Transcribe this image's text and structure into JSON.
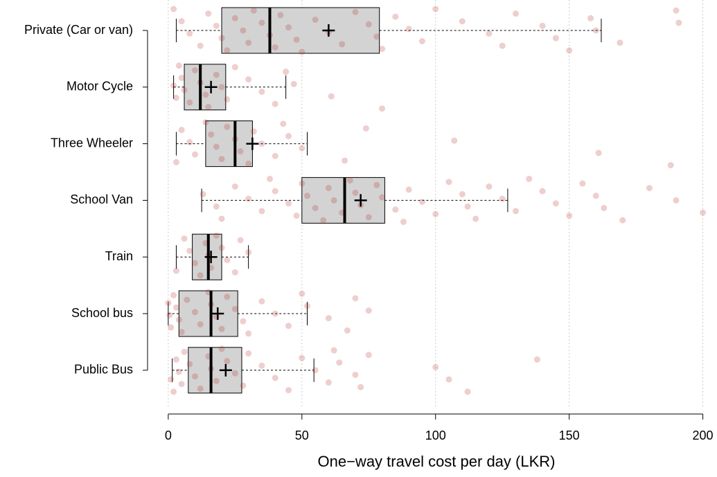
{
  "chart_data": {
    "type": "boxplot",
    "orientation": "horizontal",
    "xlabel": "One−way travel cost per day (LKR)",
    "categories": [
      "Private (Car or van)",
      "Motor Cycle",
      "Three Wheeler",
      "School Van",
      "Train",
      "School bus",
      "Public Bus"
    ],
    "boxes": [
      {
        "whislo": 3,
        "q1": 20,
        "med": 38,
        "q3": 79,
        "whishi": 162,
        "mean": 60
      },
      {
        "whislo": 2,
        "q1": 6,
        "med": 12,
        "q3": 21.5,
        "whishi": 44,
        "mean": 16
      },
      {
        "whislo": 3,
        "q1": 14,
        "med": 25,
        "q3": 31.5,
        "whishi": 52,
        "mean": 31.5
      },
      {
        "whislo": 12.5,
        "q1": 50,
        "med": 66,
        "q3": 81,
        "whishi": 127,
        "mean": 72
      },
      {
        "whislo": 3,
        "q1": 9,
        "med": 15,
        "q3": 20,
        "whishi": 30,
        "mean": 16
      },
      {
        "whislo": 0,
        "q1": 4,
        "med": 16,
        "q3": 26,
        "whishi": 52,
        "mean": 18.5
      },
      {
        "whislo": 1.5,
        "q1": 7.5,
        "med": 16,
        "q3": 27.5,
        "whishi": 54.5,
        "mean": 21.5
      }
    ],
    "points": [
      [
        2,
        5,
        8,
        12,
        15,
        18,
        20,
        22,
        25,
        28,
        30,
        32,
        35,
        38,
        40,
        42,
        45,
        48,
        50,
        55,
        60,
        65,
        70,
        75,
        78,
        80,
        85,
        90,
        95,
        100,
        110,
        120,
        125,
        130,
        140,
        145,
        150,
        158,
        160,
        169,
        190,
        191
      ],
      [
        2,
        3,
        4,
        5,
        6,
        8,
        10,
        12,
        14,
        15,
        18,
        20,
        22,
        25,
        30,
        35,
        40,
        44,
        47,
        61,
        80
      ],
      [
        3,
        5,
        8,
        10,
        14,
        16,
        18,
        20,
        22,
        25,
        27,
        30,
        32,
        35,
        40,
        43,
        45,
        50,
        66,
        74,
        107,
        161,
        188
      ],
      [
        13,
        18,
        20,
        25,
        30,
        35,
        38,
        40,
        45,
        48,
        50,
        52,
        55,
        58,
        60,
        62,
        65,
        68,
        70,
        72,
        75,
        78,
        80,
        85,
        88,
        90,
        95,
        100,
        105,
        110,
        112,
        115,
        120,
        125,
        130,
        135,
        140,
        145,
        150,
        155,
        160,
        163,
        170,
        180,
        190,
        200
      ],
      [
        3,
        6,
        8,
        10,
        12,
        14,
        15,
        16,
        18,
        20,
        22,
        25,
        27,
        30
      ],
      [
        0,
        0.5,
        1,
        2,
        3,
        4,
        5,
        7,
        10,
        12,
        15,
        16,
        18,
        20,
        22,
        25,
        28,
        30,
        35,
        40,
        45,
        50,
        52,
        60,
        67,
        70,
        75
      ],
      [
        1,
        2,
        3,
        4,
        5,
        6,
        8,
        10,
        12,
        15,
        16,
        18,
        20,
        22,
        25,
        28,
        30,
        35,
        40,
        45,
        50,
        55,
        60,
        62,
        64,
        70,
        72,
        75,
        100,
        105,
        112,
        138
      ]
    ],
    "point_color": "#b22222",
    "box_color": "#d3d3d3",
    "xlim": [
      -8,
      204
    ],
    "xticks": [
      0,
      50,
      100,
      150,
      200
    ],
    "grid": true
  }
}
